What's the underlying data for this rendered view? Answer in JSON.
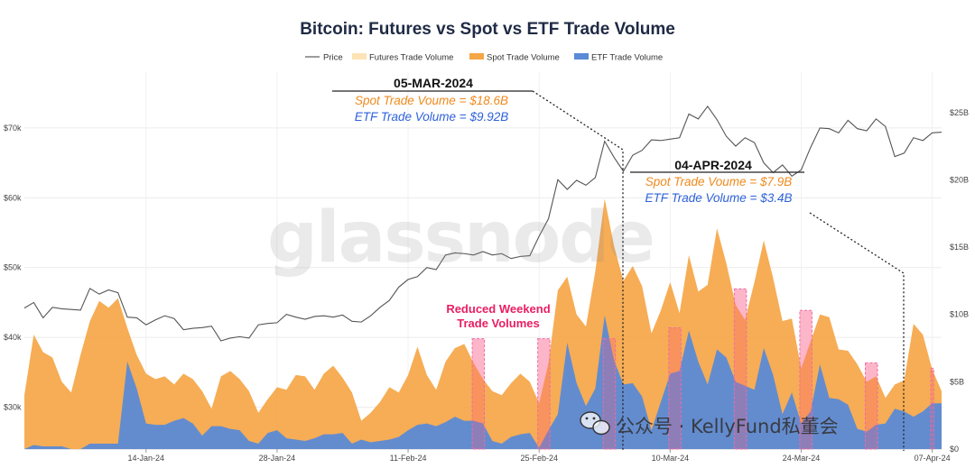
{
  "chart_data": {
    "type": "area",
    "title": "Bitcoin: Futures vs Spot vs ETF Trade Volume",
    "legend": {
      "placement": "top-center",
      "items": [
        {
          "label": "Price",
          "color": "#666666",
          "kind": "line"
        },
        {
          "label": "Futures Trade Volume",
          "color": "#fde3b5",
          "kind": "fill"
        },
        {
          "label": "Spot Trade Volume",
          "color": "#f5a646",
          "kind": "fill"
        },
        {
          "label": "ETF Trade Volume",
          "color": "#5b8ad6",
          "kind": "fill"
        }
      ]
    },
    "x_tick_labels": [
      "14-Jan-24",
      "28-Jan-24",
      "11-Feb-24",
      "25-Feb-24",
      "10-Mar-24",
      "24-Mar-24",
      "07-Apr-24"
    ],
    "left_axis": {
      "ticks": [
        "$30k",
        "$40k",
        "$50k",
        "$60k",
        "$70k"
      ],
      "tick_values": [
        30000,
        40000,
        50000,
        60000,
        70000
      ],
      "range": [
        24000,
        78000
      ]
    },
    "right_axis": {
      "ticks": [
        "$0",
        "$5B",
        "$10B",
        "$15B",
        "$20B",
        "$25B"
      ],
      "tick_values": [
        0,
        5,
        10,
        15,
        20,
        25
      ],
      "range": [
        0,
        28
      ]
    },
    "grid": true,
    "day_offsets_from_first": [
      0,
      1,
      2,
      3,
      4,
      5,
      6,
      7,
      8,
      9,
      10,
      11,
      12,
      13,
      14,
      15,
      16,
      17,
      18,
      19,
      20,
      21,
      22,
      23,
      24,
      25,
      26,
      27,
      28,
      29,
      30,
      31,
      32,
      33,
      34,
      35,
      36,
      37,
      38,
      39,
      40,
      41,
      42,
      43,
      44,
      45,
      46,
      47,
      48,
      49,
      50,
      51,
      52,
      53,
      54,
      55,
      56,
      57,
      58,
      59,
      60,
      61,
      62,
      63,
      64,
      65,
      66,
      67,
      68,
      69,
      70,
      71,
      72,
      73,
      74,
      75,
      76,
      77,
      78,
      79,
      80,
      81,
      82,
      83,
      84,
      85,
      86,
      87,
      88,
      89,
      90,
      91,
      92,
      93,
      94,
      95,
      96,
      97,
      98
    ],
    "first_date": "01-Jan-24",
    "series": [
      {
        "name": "Price",
        "axis": "left",
        "values": [
          44200,
          45000,
          42800,
          44300,
          44100,
          44000,
          43900,
          47000,
          46200,
          46800,
          46400,
          42900,
          42800,
          41800,
          42500,
          43100,
          42700,
          41100,
          41300,
          41400,
          41600,
          39500,
          39900,
          40100,
          39900,
          41800,
          42000,
          42100,
          43300,
          42900,
          42600,
          43000,
          43100,
          42900,
          43200,
          42300,
          42200,
          43100,
          44300,
          45300,
          47200,
          48300,
          48700,
          50000,
          49700,
          51800,
          52100,
          52000,
          51800,
          52300,
          51800,
          52000,
          51300,
          51600,
          51700,
          54500,
          57000,
          62600,
          61200,
          62500,
          61800,
          62900,
          68100,
          65800,
          63800,
          66100,
          66800,
          68300,
          68200,
          68400,
          68600,
          72000,
          71300,
          73100,
          71200,
          68800,
          67400,
          68600,
          67900,
          65000,
          63600,
          64700,
          63100,
          64000,
          67200,
          70000,
          69900,
          69300,
          71100,
          69900,
          69600,
          71300,
          70200,
          65900,
          66400,
          68600,
          68200,
          69300,
          69400
        ]
      },
      {
        "name": "Spot Trade Volume",
        "axis": "right",
        "values": [
          4,
          8.5,
          7.2,
          6.8,
          5,
          4.2,
          7,
          9.5,
          11,
          10.5,
          11.2,
          9,
          7,
          5.6,
          5.2,
          5.4,
          4.8,
          5.6,
          5.2,
          4.3,
          3,
          5.4,
          5.8,
          5.2,
          4.3,
          2.7,
          3.7,
          4.6,
          4.4,
          5.5,
          5.4,
          4.4,
          5.6,
          6.2,
          5.3,
          4.2,
          2.1,
          2.7,
          3.5,
          4.6,
          4.2,
          5.5,
          7.6,
          5.5,
          4.4,
          6.5,
          7.5,
          7.8,
          6.4,
          5.2,
          4.3,
          4,
          4.9,
          5.6,
          5,
          3.4,
          6.4,
          11.8,
          12.8,
          10,
          9.1,
          13.2,
          18.6,
          15.1,
          12.5,
          13.6,
          12.1,
          8.6,
          10.3,
          12.4,
          10.1,
          14.4,
          11.7,
          12.2,
          16.4,
          13.8,
          10.7,
          9.6,
          12.4,
          15.5,
          12.7,
          9.5,
          9.7,
          6,
          8,
          10,
          9.8,
          7.4,
          7.3,
          6.3,
          5,
          5.4,
          3.8,
          4.8,
          5.1,
          9.3,
          8.5,
          5.9,
          4.3
        ]
      },
      {
        "name": "ETF Trade Volume",
        "axis": "right",
        "values": [
          0,
          0.3,
          0.2,
          0.2,
          0.2,
          0,
          0,
          0.4,
          0.4,
          0.4,
          0.4,
          6.5,
          4.5,
          1.9,
          1.8,
          1.8,
          2.1,
          2.3,
          1.9,
          1,
          1.7,
          1.7,
          1.5,
          1.4,
          0.6,
          0.4,
          1.2,
          1.4,
          0.8,
          0.7,
          0.6,
          0.8,
          1.1,
          1.1,
          1.2,
          0.4,
          0.7,
          0.5,
          0.6,
          0.7,
          0.9,
          1.4,
          1.8,
          1.9,
          1.7,
          2,
          2.4,
          2.1,
          2.1,
          1.9,
          0.6,
          0.4,
          0.9,
          1.1,
          1.2,
          0.1,
          1.4,
          2.6,
          7.9,
          4.9,
          3.2,
          4.5,
          9.92,
          6.6,
          4.8,
          4.9,
          3.9,
          1.4,
          3.5,
          5.6,
          5.8,
          8.8,
          6.5,
          4.8,
          7.4,
          6.8,
          5,
          4.7,
          4.4,
          7.5,
          5.5,
          2.6,
          4.2,
          1.9,
          2.8,
          6.3,
          3.8,
          3.7,
          3.3,
          1.5,
          1.3,
          1.8,
          1.9,
          3,
          2.8,
          2.4,
          2.8,
          3.4,
          3.4
        ]
      }
    ],
    "weekend_highlight_day_offsets": [
      6,
      7,
      13,
      14,
      20,
      21,
      27,
      28,
      34,
      35,
      41,
      42,
      48,
      49,
      55,
      56,
      62,
      63,
      69,
      70,
      76,
      77,
      83,
      84,
      90,
      91,
      97
    ],
    "weekend_highlight_values": [
      8.2,
      8.2,
      8.2,
      8.2,
      8.2,
      8.2,
      8.2,
      8.2,
      8.2,
      8.2,
      8.2,
      8.2,
      8.2,
      8.2,
      8.2,
      8.2,
      8.2,
      8.2,
      9,
      9,
      11.9,
      11.9,
      10.3,
      10.3,
      6.4,
      6.4,
      6
    ],
    "annotations": {
      "box1": {
        "date": "05-MAR-2024",
        "spot": "Spot Trade Voume = $18.6B",
        "etf": "ETF Trade Volume = $9.92B"
      },
      "box2": {
        "date": "04-APR-2024",
        "spot": "Spot Trade Voume = $7.9B",
        "etf": "ETF Trade Volume = $3.4B"
      },
      "weekend_line1": "Reduced Weekend",
      "weekend_line2": "Trade Volumes"
    },
    "watermark": "glassnode",
    "footer_brand": "公众号 · KellyFund私董会",
    "colors": {
      "spot": "#f5a646",
      "etf": "#5b8ad6",
      "price": "#555555",
      "weekend_fill": "#fbd3e4",
      "weekend_stroke": "#f06aa5",
      "title": "#1f2a44",
      "spot_text": "#f08a1c",
      "etf_text": "#2e62d9",
      "weekend_text": "#e91e63"
    }
  }
}
